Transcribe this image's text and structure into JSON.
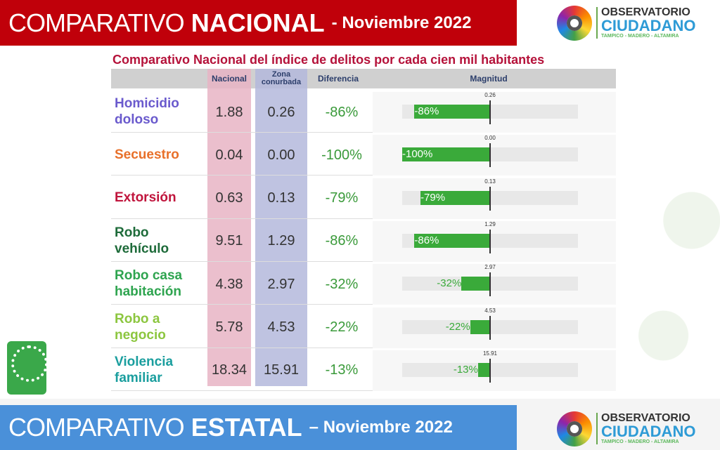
{
  "header": {
    "title_light": "COMPARATIVO",
    "title_bold": "NACIONAL",
    "title_suffix": "- Noviembre 2022"
  },
  "logo": {
    "line1": "OBSERVATORIO",
    "line2": "CIUDADANO",
    "line3": "TAMPICO - MADERO - ALTAMIRA"
  },
  "subtitle": "Comparativo Nacional del índice de delitos por cada cien mil habitantes",
  "columns": {
    "nacional": "Nacional",
    "zona": "Zona conurbada",
    "diferencia": "Diferencia",
    "magnitud": "Magnitud"
  },
  "colors": {
    "nacional_bg": "#e8b4c4",
    "zona_bg": "#b4b8dc",
    "bar": "#3aaa3a",
    "header_red": "#c0000a",
    "footer_blue": "#4a90d9"
  },
  "rows": [
    {
      "label": "Homicidio doloso",
      "color": "#6a5acd",
      "nacional": "1.88",
      "zona": "0.26",
      "diferencia": "-86%",
      "pct": -86
    },
    {
      "label": "Secuestro",
      "color": "#e8702a",
      "nacional": "0.04",
      "zona": "0.00",
      "diferencia": "-100%",
      "pct": -100
    },
    {
      "label": "Extorsión",
      "color": "#c0143c",
      "nacional": "0.63",
      "zona": "0.13",
      "diferencia": "-79%",
      "pct": -79
    },
    {
      "label": "Robo vehículo",
      "color": "#1e6b3a",
      "nacional": "9.51",
      "zona": "1.29",
      "diferencia": "-86%",
      "pct": -86
    },
    {
      "label": "Robo casa habitación",
      "color": "#2ea44f",
      "nacional": "4.38",
      "zona": "2.97",
      "diferencia": "-32%",
      "pct": -32
    },
    {
      "label": "Robo a negocio",
      "color": "#8cc63f",
      "nacional": "5.78",
      "zona": "4.53",
      "diferencia": "-22%",
      "pct": -22
    },
    {
      "label": "Violencia familiar",
      "color": "#1a9e9e",
      "nacional": "18.34",
      "zona": "15.91",
      "diferencia": "-13%",
      "pct": -13
    }
  ],
  "footer": {
    "title_light": "COMPARATIVO",
    "title_bold": "ESTATAL",
    "title_suffix": "– Noviembre 2022"
  }
}
